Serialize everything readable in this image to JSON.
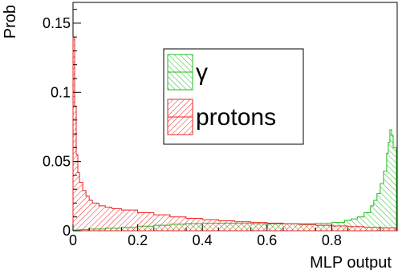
{
  "chart_data": {
    "type": "area",
    "xlabel": "MLP output",
    "ylabel": "Prob",
    "xlim": [
      0,
      1
    ],
    "ylim": [
      0,
      0.165
    ],
    "x_ticks": [
      {
        "v": 0,
        "label": "0"
      },
      {
        "v": 0.2,
        "label": "0.2"
      },
      {
        "v": 0.4,
        "label": "0.4"
      },
      {
        "v": 0.6,
        "label": "0.6"
      },
      {
        "v": 0.8,
        "label": "0.8"
      }
    ],
    "y_ticks": [
      {
        "v": 0,
        "label": "0"
      },
      {
        "v": 0.05,
        "label": "0.05"
      },
      {
        "v": 0.1,
        "label": "0.1"
      },
      {
        "v": 0.15,
        "label": "0.15"
      }
    ],
    "legend_position": "top-center",
    "series": [
      {
        "name": "γ",
        "color": "#22bb22",
        "x": [
          0.0,
          0.02,
          0.05,
          0.1,
          0.15,
          0.2,
          0.25,
          0.3,
          0.35,
          0.4,
          0.45,
          0.5,
          0.55,
          0.6,
          0.65,
          0.7,
          0.75,
          0.8,
          0.84,
          0.86,
          0.88,
          0.9,
          0.92,
          0.93,
          0.94,
          0.95,
          0.96,
          0.97,
          0.975,
          0.98,
          0.985,
          0.99,
          1.0
        ],
        "values": [
          0.0005,
          0.0008,
          0.0012,
          0.0018,
          0.0025,
          0.0033,
          0.004,
          0.0047,
          0.0052,
          0.0055,
          0.0055,
          0.0053,
          0.0051,
          0.005,
          0.005,
          0.0051,
          0.0053,
          0.006,
          0.0075,
          0.0085,
          0.01,
          0.013,
          0.018,
          0.022,
          0.027,
          0.034,
          0.043,
          0.056,
          0.064,
          0.073,
          0.069,
          0.06,
          0.048
        ]
      },
      {
        "name": "protons",
        "color": "#ee2222",
        "x": [
          0.0,
          0.005,
          0.01,
          0.015,
          0.02,
          0.03,
          0.04,
          0.05,
          0.06,
          0.08,
          0.1,
          0.12,
          0.15,
          0.2,
          0.25,
          0.3,
          0.35,
          0.4,
          0.45,
          0.5,
          0.55,
          0.6,
          0.65,
          0.7,
          0.75,
          0.8,
          0.85,
          0.9,
          0.95,
          1.0
        ],
        "values": [
          0.14,
          0.09,
          0.055,
          0.042,
          0.035,
          0.029,
          0.025,
          0.022,
          0.02,
          0.018,
          0.017,
          0.016,
          0.015,
          0.013,
          0.0115,
          0.01,
          0.009,
          0.008,
          0.0072,
          0.0065,
          0.006,
          0.0055,
          0.005,
          0.0045,
          0.004,
          0.0035,
          0.003,
          0.0025,
          0.002,
          0.0015
        ]
      }
    ]
  }
}
